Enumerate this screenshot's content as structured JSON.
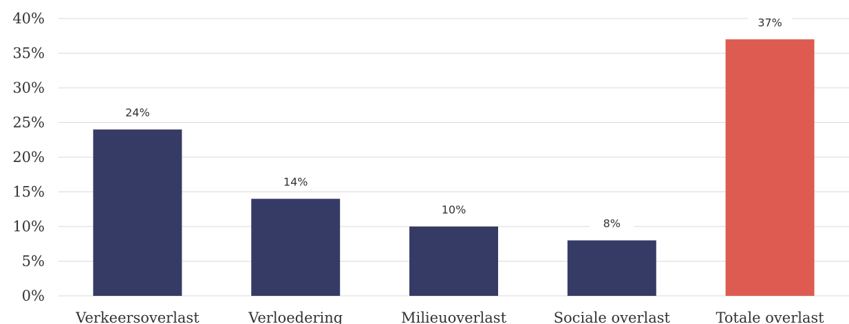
{
  "chart_data": {
    "type": "bar",
    "categories": [
      "Verkeersoverlast",
      "Verloedering",
      "Milieuoverlast",
      "Sociale overlast",
      "Totale overlast"
    ],
    "values": [
      24,
      14,
      10,
      8,
      37
    ],
    "data_labels": [
      "24%",
      "14%",
      "10%",
      "8%",
      "37%"
    ],
    "ylim": [
      0,
      40
    ],
    "yticks": [
      0,
      5,
      10,
      15,
      20,
      25,
      30,
      35,
      40
    ],
    "ytick_labels": [
      "0%",
      "5%",
      "10%",
      "15%",
      "20%",
      "25%",
      "30%",
      "35%",
      "40%"
    ],
    "grid": true,
    "colors": [
      "#363b66",
      "#363b66",
      "#363b66",
      "#363b66",
      "#dd5b50"
    ],
    "title": "",
    "xlabel": "",
    "ylabel": ""
  }
}
